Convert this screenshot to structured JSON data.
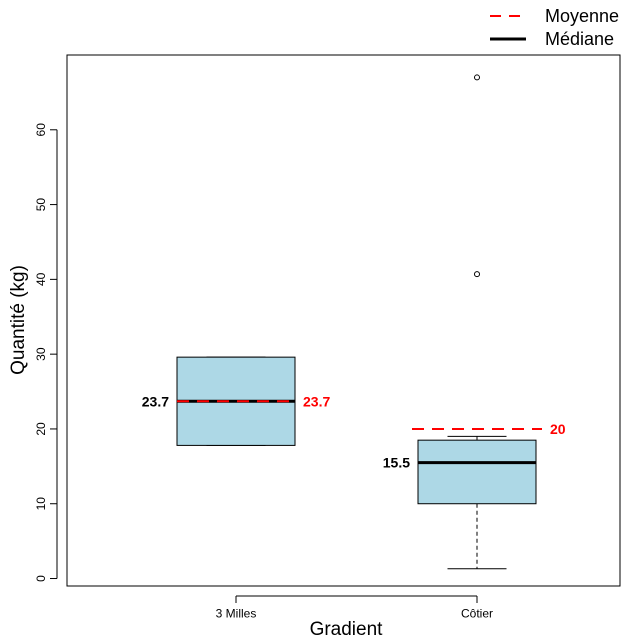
{
  "chart_data": {
    "type": "box",
    "xlabel": "Gradient",
    "ylabel": "Quantité (kg)",
    "ylim": [
      -1,
      70
    ],
    "yticks": [
      0,
      10,
      20,
      30,
      40,
      50,
      60
    ],
    "grid": false,
    "legend_position": "top-right",
    "legend": [
      {
        "label": "Moyenne",
        "style": "dashed",
        "color": "#ff0000"
      },
      {
        "label": "Médiane",
        "style": "solid",
        "color": "#000000"
      }
    ],
    "box_fill": "#add8e6",
    "categories": [
      "3 Milles",
      "Côtier"
    ],
    "boxes": [
      {
        "category": "3 Milles",
        "q1": 17.8,
        "median": 23.7,
        "q3": 29.6,
        "whisker_low": 17.8,
        "whisker_high": 29.6,
        "mean": 23.7,
        "outliers": [],
        "median_label": "23.7",
        "mean_label": "23.7"
      },
      {
        "category": "Côtier",
        "q1": 10.0,
        "median": 15.5,
        "q3": 18.5,
        "whisker_low": 1.3,
        "whisker_high": 19.0,
        "mean": 20.0,
        "outliers": [
          40.7,
          67.0
        ],
        "median_label": "15.5",
        "mean_label": "20"
      }
    ]
  }
}
